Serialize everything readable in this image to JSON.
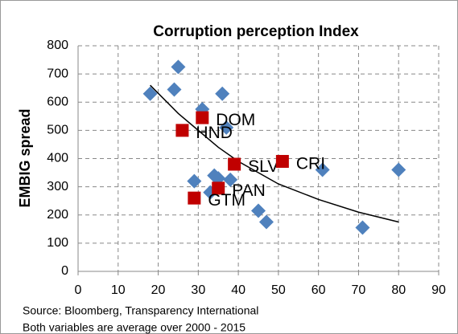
{
  "chart_data": {
    "type": "scatter",
    "title": "Corruption perception Index",
    "ylabel": "EMBIG spread",
    "notes": [
      "Source: Bloomberg, Transparency International",
      "Both variables are average over 2000 - 2015"
    ],
    "xlim": [
      0,
      90
    ],
    "xticks": [
      0,
      10,
      20,
      30,
      40,
      50,
      60,
      70,
      80,
      90
    ],
    "ylim": [
      0,
      800
    ],
    "yticks": [
      0,
      100,
      200,
      300,
      400,
      500,
      600,
      700,
      800
    ],
    "grid": true,
    "diamonds": {
      "color": "#4f81bd",
      "x": [
        18,
        25,
        24,
        31,
        36,
        37,
        29,
        33,
        34,
        35,
        38,
        45,
        47,
        61,
        71,
        80
      ],
      "values": [
        630,
        725,
        645,
        575,
        630,
        510,
        320,
        280,
        340,
        330,
        325,
        215,
        175,
        360,
        155,
        360
      ]
    },
    "squares": {
      "color": "#c00000",
      "labels": [
        "DOM",
        "HND",
        "SLV",
        "CRI",
        "PAN",
        "GTM"
      ],
      "x": [
        31,
        26,
        39,
        51,
        35,
        29
      ],
      "values": [
        545,
        500,
        380,
        390,
        295,
        260
      ]
    },
    "trendline": {
      "color": "#000000",
      "x": [
        18,
        25,
        30,
        35,
        40,
        50,
        60,
        70,
        80
      ],
      "values": [
        660,
        560,
        500,
        440,
        390,
        310,
        255,
        210,
        175
      ]
    }
  }
}
